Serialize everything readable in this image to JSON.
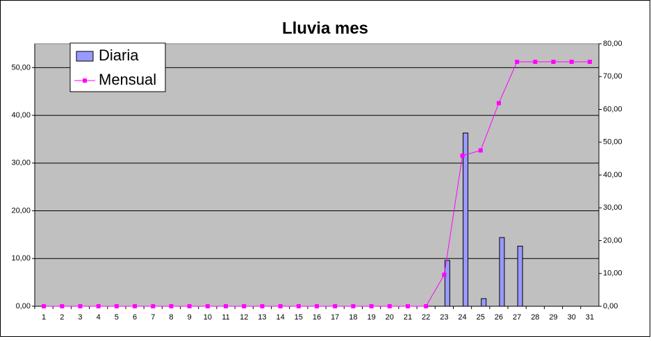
{
  "chart_data": {
    "type": "bar-line",
    "title": "Lluvia mes",
    "categories": [
      "1",
      "2",
      "3",
      "4",
      "5",
      "6",
      "7",
      "8",
      "9",
      "10",
      "11",
      "12",
      "13",
      "14",
      "15",
      "16",
      "17",
      "18",
      "19",
      "20",
      "21",
      "22",
      "23",
      "24",
      "25",
      "26",
      "27",
      "28",
      "29",
      "30",
      "31"
    ],
    "series": [
      {
        "name": "Diaria",
        "type": "bar",
        "color": "#9999ff",
        "values": [
          0,
          0,
          0,
          0,
          0,
          0,
          0,
          0,
          0,
          0,
          0,
          0,
          0,
          0,
          0,
          0,
          0,
          0,
          0,
          0,
          0,
          0,
          9.6,
          36.3,
          1.6,
          14.4,
          12.6,
          0,
          0,
          0,
          0
        ]
      },
      {
        "name": "Mensual",
        "type": "line",
        "axis": "y2",
        "color": "#ff00ff",
        "values": [
          0,
          0,
          0,
          0,
          0,
          0,
          0,
          0,
          0,
          0,
          0,
          0,
          0,
          0,
          0,
          0,
          0,
          0,
          0,
          0,
          0,
          0,
          9.6,
          45.9,
          47.5,
          61.9,
          74.5,
          74.5,
          74.5,
          74.5,
          74.5
        ]
      }
    ],
    "ylim": [
      0,
      55
    ],
    "yticks": [
      {
        "value": 0,
        "label": "0,00"
      },
      {
        "value": 10,
        "label": "10,00"
      },
      {
        "value": 20,
        "label": "20,00"
      },
      {
        "value": 30,
        "label": "30,00"
      },
      {
        "value": 40,
        "label": "40,00"
      },
      {
        "value": 50,
        "label": "50,00"
      }
    ],
    "y2lim": [
      0,
      80
    ],
    "y2ticks": [
      {
        "value": 0,
        "label": "0,00"
      },
      {
        "value": 10,
        "label": "10,00"
      },
      {
        "value": 20,
        "label": "20,00"
      },
      {
        "value": 30,
        "label": "30,00"
      },
      {
        "value": 40,
        "label": "40,00"
      },
      {
        "value": 50,
        "label": "50,00"
      },
      {
        "value": 60,
        "label": "60,00"
      },
      {
        "value": 70,
        "label": "70,00"
      },
      {
        "value": 80,
        "label": "80,00"
      }
    ],
    "grid": true,
    "legend": "top-left"
  }
}
